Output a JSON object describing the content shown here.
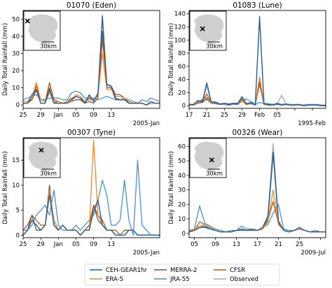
{
  "colors": {
    "CEH-GEAR1hr": "#1f5f9e",
    "ERA-5": "#f08a2c",
    "MERRA-2": "#5a5a5a",
    "JRA-55": "#4a92cf",
    "CFSR": "#b8560f",
    "Observed": "#a9a9a9"
  },
  "legend": {
    "entries": [
      "CEH-GEAR1hr",
      "ERA-5",
      "MERRA-2",
      "JRA-55",
      "CFSR",
      "Observed"
    ],
    "placement": "bottom-center"
  },
  "inset_icons": [
    "uk-map-icon",
    "station-marker-x-icon"
  ],
  "chart_data": [
    {
      "type": "line",
      "title": "01070 (Eden)",
      "ylabel": "Daily Total Rainfall (mm)",
      "xlabel": "",
      "period_label": "2005-Jan",
      "x_range": [
        0,
        31
      ],
      "x_ticks": [
        0,
        4,
        8,
        12,
        16,
        20
      ],
      "x_tick_labels": [
        "25",
        "29",
        "Jan",
        "05",
        "09",
        "13"
      ],
      "y_ticks": [
        0,
        10,
        20,
        30,
        40,
        50
      ],
      "ylim": [
        -2,
        55
      ],
      "inset_scale": "30km",
      "marker": [
        0.1,
        0.25
      ],
      "series": [
        {
          "name": "CEH-GEAR1hr",
          "values": [
            1,
            1,
            6,
            9,
            1,
            1,
            9,
            1,
            1,
            1,
            1,
            3,
            5,
            4,
            1,
            6,
            2,
            7,
            52,
            12,
            11,
            4,
            3,
            3,
            1,
            1,
            1,
            1,
            0,
            2,
            1,
            1
          ]
        },
        {
          "name": "ERA-5",
          "values": [
            2,
            2,
            4,
            13,
            3,
            2,
            7,
            2,
            2,
            1,
            1,
            2,
            6,
            5,
            2,
            3,
            3,
            5,
            30,
            9,
            9,
            5,
            5,
            4,
            2,
            1,
            1,
            1,
            0,
            1,
            1,
            1
          ]
        },
        {
          "name": "MERRA-2",
          "values": [
            1,
            1,
            3,
            9,
            1,
            1,
            10,
            1,
            2,
            1,
            1,
            2,
            3,
            3,
            1,
            2,
            1,
            4,
            43,
            10,
            10,
            3,
            3,
            3,
            1,
            1,
            1,
            1,
            0,
            1,
            1,
            1
          ]
        },
        {
          "name": "JRA-55",
          "values": [
            3,
            4,
            5,
            6,
            3,
            3,
            4,
            4,
            4,
            3,
            3,
            7,
            8,
            7,
            4,
            4,
            4,
            3,
            4,
            5,
            4,
            3,
            3,
            4,
            3,
            2,
            1,
            3,
            2,
            4,
            3,
            2
          ]
        },
        {
          "name": "CFSR",
          "values": [
            1,
            1,
            4,
            11,
            3,
            2,
            13,
            3,
            2,
            1,
            2,
            4,
            5,
            4,
            2,
            4,
            3,
            6,
            38,
            12,
            11,
            6,
            6,
            4,
            1,
            1,
            1,
            1,
            0,
            1,
            1,
            1
          ]
        },
        {
          "name": "Observed",
          "values": [
            1,
            1,
            6,
            8,
            1,
            1,
            9,
            1,
            1,
            1,
            1,
            3,
            5,
            4,
            1,
            5,
            2,
            6,
            50,
            11,
            11,
            4,
            3,
            3,
            1,
            1,
            1,
            1,
            0,
            2,
            1,
            1
          ]
        }
      ]
    },
    {
      "type": "line",
      "title": "01083 (Lune)",
      "ylabel": "Daily Total Rainfall (mm)",
      "xlabel": "",
      "period_label": "1995-Feb",
      "x_range": [
        0,
        31
      ],
      "x_ticks": [
        0,
        4,
        8,
        12,
        16,
        20,
        24,
        28
      ],
      "x_tick_labels": [
        "17",
        "21",
        "25",
        "29",
        "Feb",
        "05"
      ],
      "x_tick_positions": [
        0,
        4,
        8,
        12,
        16,
        20
      ],
      "y_ticks": [
        0,
        20,
        40,
        60,
        80,
        100,
        120,
        140
      ],
      "ylim": [
        -4,
        145
      ],
      "inset_scale": "30km",
      "marker": [
        0.35,
        0.45
      ],
      "series": [
        {
          "name": "CEH-GEAR1hr",
          "values": [
            2,
            2,
            8,
            6,
            35,
            6,
            5,
            2,
            3,
            2,
            3,
            3,
            14,
            3,
            5,
            1,
            136,
            4,
            2,
            1,
            3,
            1,
            2,
            1,
            1,
            2,
            0,
            1,
            1,
            1,
            0,
            0
          ]
        },
        {
          "name": "ERA-5",
          "values": [
            1,
            2,
            5,
            7,
            12,
            5,
            4,
            2,
            2,
            2,
            2,
            3,
            7,
            3,
            4,
            1,
            44,
            3,
            2,
            1,
            3,
            1,
            2,
            1,
            1,
            1,
            0,
            1,
            1,
            1,
            0,
            0
          ]
        },
        {
          "name": "MERRA-2",
          "values": [
            1,
            1,
            4,
            5,
            10,
            4,
            3,
            2,
            2,
            1,
            2,
            2,
            7,
            2,
            3,
            1,
            33,
            2,
            1,
            1,
            2,
            1,
            2,
            1,
            1,
            1,
            0,
            1,
            1,
            1,
            0,
            0
          ]
        },
        {
          "name": "JRA-55",
          "values": [
            2,
            2,
            4,
            10,
            13,
            6,
            6,
            3,
            4,
            3,
            4,
            4,
            9,
            10,
            7,
            2,
            5,
            3,
            3,
            2,
            4,
            2,
            3,
            2,
            2,
            2,
            1,
            2,
            2,
            2,
            1,
            1
          ]
        },
        {
          "name": "CFSR",
          "values": [
            1,
            2,
            6,
            8,
            18,
            5,
            5,
            2,
            3,
            2,
            3,
            3,
            10,
            3,
            5,
            1,
            37,
            3,
            2,
            1,
            3,
            1,
            2,
            1,
            1,
            1,
            0,
            1,
            1,
            1,
            0,
            0
          ]
        },
        {
          "name": "Observed",
          "values": [
            2,
            2,
            8,
            6,
            30,
            6,
            5,
            2,
            3,
            2,
            3,
            3,
            12,
            3,
            5,
            1,
            133,
            4,
            2,
            1,
            3,
            16,
            2,
            1,
            1,
            1,
            0,
            1,
            1,
            1,
            0,
            0
          ]
        }
      ]
    },
    {
      "type": "line",
      "title": "00307 (Tyne)",
      "ylabel": "Daily Total Rainfall (mm)",
      "xlabel": "",
      "period_label": "2005-Jan",
      "x_range": [
        0,
        31
      ],
      "x_ticks": [
        0,
        4,
        8,
        12,
        16,
        20
      ],
      "x_tick_labels": [
        "25",
        "29",
        "Jan",
        "05",
        "09",
        "13"
      ],
      "y_ticks": [
        0,
        5,
        10,
        15
      ],
      "ylim": [
        -0.5,
        19.5
      ],
      "inset_scale": "30km",
      "marker": [
        0.48,
        0.3
      ],
      "series": [
        {
          "name": "CEH-GEAR1hr",
          "values": [
            0,
            1,
            3,
            2,
            1,
            2,
            8,
            2,
            1,
            2,
            1,
            1,
            1,
            0,
            1,
            1,
            5,
            7,
            2,
            1,
            1,
            0,
            0,
            0,
            1,
            1,
            0,
            0,
            0,
            0,
            0,
            0
          ]
        },
        {
          "name": "ERA-5",
          "values": [
            0,
            1,
            3,
            2,
            1,
            2,
            9,
            3,
            1,
            2,
            1,
            1,
            1,
            0,
            1,
            1,
            19,
            4,
            2,
            1,
            1,
            0,
            0,
            0,
            1,
            1,
            0,
            0,
            0,
            0,
            0,
            0
          ]
        },
        {
          "name": "MERRA-2",
          "values": [
            0,
            1,
            4,
            1,
            1,
            2,
            10,
            2,
            1,
            2,
            1,
            1,
            1,
            0,
            1,
            2,
            6,
            3,
            2,
            1,
            1,
            0,
            0,
            0,
            1,
            1,
            0,
            0,
            0,
            0,
            0,
            0
          ]
        },
        {
          "name": "JRA-55",
          "values": [
            1,
            1,
            2,
            4,
            5,
            6,
            4,
            9,
            2,
            1,
            1,
            1,
            2,
            1,
            2,
            3,
            4,
            7,
            11,
            8,
            2,
            2,
            3,
            11,
            3,
            0,
            15,
            2,
            1,
            0,
            0,
            0
          ]
        },
        {
          "name": "CFSR",
          "values": [
            1,
            2,
            4,
            3,
            2,
            2,
            9,
            3,
            1,
            2,
            1,
            1,
            1,
            0,
            1,
            2,
            6,
            4,
            3,
            1,
            1,
            1,
            0,
            1,
            1,
            1,
            0,
            0,
            0,
            0,
            0,
            0
          ]
        },
        {
          "name": "Observed",
          "values": [
            0,
            1,
            3,
            2,
            1,
            2,
            8,
            2,
            1,
            2,
            1,
            1,
            1,
            0,
            1,
            1,
            5,
            7,
            2,
            1,
            1,
            0,
            0,
            0,
            1,
            1,
            0,
            0,
            0,
            0,
            0,
            0
          ]
        }
      ]
    },
    {
      "type": "line",
      "title": "00326 (Wear)",
      "ylabel": "Daily Total Rainfall (mm)",
      "xlabel": "",
      "period_label": "2009-Jul",
      "x_range": [
        0,
        26
      ],
      "x_ticks": [
        1,
        5,
        9,
        13,
        17,
        21,
        25
      ],
      "x_tick_labels": [
        "05",
        "09",
        "13",
        "17",
        "21",
        "25"
      ],
      "x_tick_positions": [
        1,
        5,
        9,
        13,
        17,
        21
      ],
      "y_ticks": [
        0,
        10,
        20,
        30,
        40,
        50,
        60
      ],
      "ylim": [
        -3,
        66
      ],
      "inset_scale": "30km",
      "marker": [
        0.6,
        0.55
      ],
      "series": [
        {
          "name": "CEH-GEAR1hr",
          "values": [
            1,
            2,
            4,
            5,
            3,
            2,
            1,
            1,
            1,
            2,
            3,
            2,
            3,
            2,
            4,
            12,
            56,
            8,
            2,
            1,
            2,
            4,
            2,
            1,
            1,
            1,
            1
          ]
        },
        {
          "name": "ERA-5",
          "values": [
            1,
            3,
            5,
            6,
            4,
            2,
            1,
            1,
            1,
            2,
            3,
            2,
            3,
            2,
            3,
            8,
            30,
            6,
            2,
            1,
            2,
            3,
            2,
            1,
            1,
            1,
            1
          ]
        },
        {
          "name": "MERRA-2",
          "values": [
            1,
            2,
            4,
            4,
            3,
            2,
            1,
            1,
            1,
            2,
            2,
            2,
            2,
            2,
            3,
            10,
            55,
            8,
            2,
            1,
            2,
            3,
            2,
            1,
            1,
            1,
            1
          ]
        },
        {
          "name": "JRA-55",
          "values": [
            2,
            3,
            19,
            7,
            5,
            3,
            2,
            1,
            2,
            2,
            5,
            3,
            3,
            2,
            4,
            6,
            14,
            20,
            3,
            2,
            2,
            3,
            2,
            1,
            2,
            1,
            1
          ]
        },
        {
          "name": "CFSR",
          "values": [
            1,
            2,
            8,
            6,
            4,
            2,
            1,
            1,
            1,
            2,
            3,
            2,
            3,
            2,
            3,
            9,
            22,
            7,
            2,
            1,
            2,
            3,
            2,
            1,
            1,
            1,
            1
          ]
        },
        {
          "name": "Observed",
          "values": [
            1,
            2,
            4,
            5,
            3,
            2,
            1,
            1,
            1,
            2,
            3,
            2,
            3,
            2,
            4,
            12,
            62,
            9,
            2,
            1,
            2,
            4,
            2,
            1,
            1,
            1,
            1
          ]
        }
      ]
    }
  ]
}
